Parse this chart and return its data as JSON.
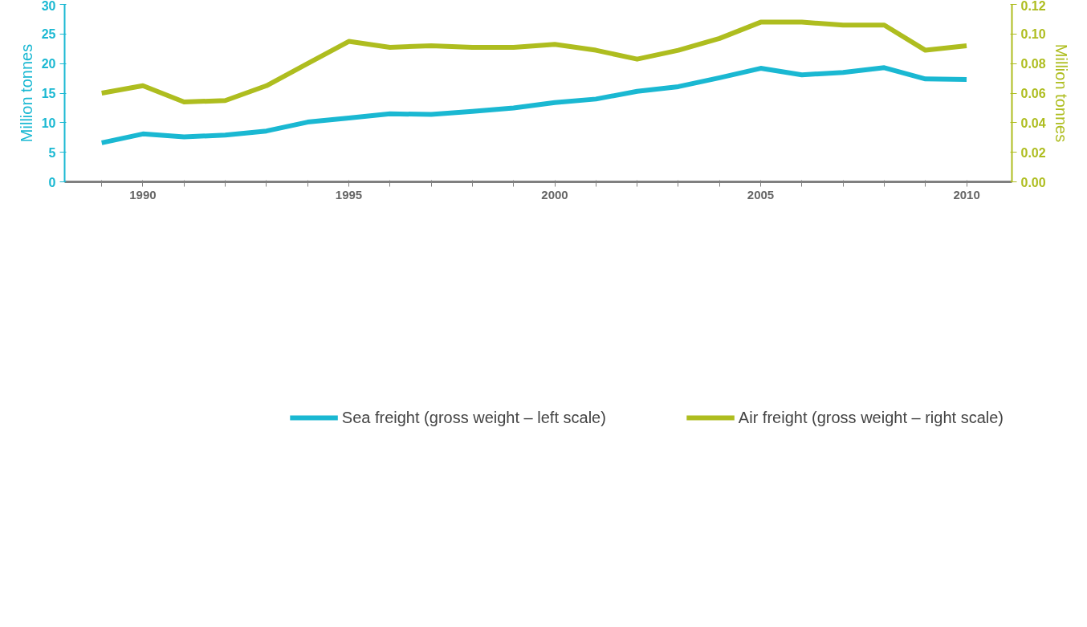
{
  "chart_data": {
    "type": "line",
    "ylabel": "Million tonnes",
    "y2label": "Million tonnes",
    "x": [
      1989,
      1990,
      1991,
      1992,
      1993,
      1994,
      1995,
      1996,
      1997,
      1998,
      1999,
      2000,
      2001,
      2002,
      2003,
      2004,
      2005,
      2006,
      2007,
      2008,
      2009,
      2010
    ],
    "series": [
      {
        "name": "Sea freight (gross weight – left scale)",
        "color": "#1ab8d2",
        "values": [
          6.6,
          8.1,
          7.6,
          7.9,
          8.6,
          10.1,
          10.8,
          11.5,
          11.4,
          11.9,
          12.5,
          13.4,
          14.0,
          15.3,
          16.1,
          17.6,
          19.2,
          18.1,
          18.5,
          19.3,
          17.4,
          17.3
        ]
      },
      {
        "name": "Air freight (gross weight – right scale)",
        "color": "#aebd1f",
        "axis": "y2",
        "values": [
          0.06,
          0.065,
          0.054,
          0.055,
          0.065,
          0.08,
          0.095,
          0.091,
          0.092,
          0.091,
          0.091,
          0.093,
          0.089,
          0.083,
          0.089,
          0.097,
          0.108,
          0.108,
          0.106,
          0.106,
          0.089,
          0.092
        ]
      }
    ],
    "xlim": [
      1988.1,
      2011.1
    ],
    "xticks": [
      {
        "value": 1989,
        "label": null
      },
      1990,
      {
        "value": 1991,
        "label": null
      },
      {
        "value": 1992,
        "label": null
      },
      {
        "value": 1993,
        "label": null
      },
      {
        "value": 1994,
        "label": null
      },
      1995,
      {
        "value": 1996,
        "label": null
      },
      {
        "value": 1997,
        "label": null
      },
      {
        "value": 1998,
        "label": null
      },
      {
        "value": 1999,
        "label": null
      },
      2000,
      {
        "value": 2001,
        "label": null
      },
      {
        "value": 2002,
        "label": null
      },
      {
        "value": 2003,
        "label": null
      },
      {
        "value": 2004,
        "label": null
      },
      2005,
      {
        "value": 2006,
        "label": null
      },
      {
        "value": 2007,
        "label": null
      },
      {
        "value": 2008,
        "label": null
      },
      {
        "value": 2009,
        "label": null
      },
      2010
    ],
    "ylim": [
      0,
      30
    ],
    "yticks": [
      0,
      5,
      10,
      15,
      20,
      25,
      30
    ],
    "y2lim": [
      0,
      0.12
    ],
    "y2ticks": [
      {
        "value": 0,
        "label": "0.00"
      },
      {
        "value": 0.02,
        "label": "0.02"
      },
      {
        "value": 0.04,
        "label": "0.04"
      },
      {
        "value": 0.06,
        "label": "0.06"
      },
      {
        "value": 0.08,
        "label": "0.08"
      },
      {
        "value": 0.1,
        "label": "0.10"
      },
      {
        "value": 0.12,
        "label": "0.12"
      }
    ],
    "grid": false,
    "legend": "bottom",
    "marker": "none",
    "line_style": "solid"
  }
}
